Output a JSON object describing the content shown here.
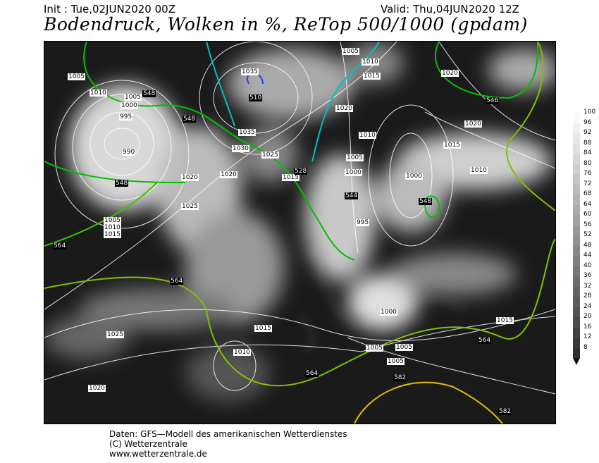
{
  "header": {
    "init": "Init : Tue,02JUN2020 00Z",
    "valid": "Valid: Thu,04JUN2020 12Z",
    "title": "Bodendruck, Wolken in %, ReTop 500/1000 (gpdam)"
  },
  "map": {
    "isobar_labels": [
      "1005",
      "1010",
      "1005",
      "1000",
      "995",
      "990",
      "1020",
      "1020",
      "1025",
      "1005",
      "1010",
      "1015",
      "1035",
      "1035",
      "1030",
      "1025",
      "1015",
      "1005",
      "1010",
      "1015",
      "1020",
      "1010",
      "1005",
      "1000",
      "995",
      "1000",
      "1020",
      "1020",
      "1015",
      "1010",
      "1000",
      "1015",
      "1015",
      "1025",
      "1010",
      "1020",
      "1005",
      "1005",
      "1005"
    ],
    "retop_labels": [
      "548",
      "548",
      "548",
      "564",
      "564",
      "528",
      "510",
      "546",
      "548",
      "544",
      "564",
      "564",
      "582",
      "582"
    ],
    "colors": {
      "isobar": "#ffffff",
      "retop_low": "#00c000",
      "retop_mid": "#90d000",
      "retop_high": "#e0c000",
      "retop_cold": "#00c0c0",
      "retop_coldest": "#2040ff",
      "coast": "#ffffff"
    }
  },
  "colorbar": {
    "unit": "%",
    "ticks": [
      "100",
      "96",
      "92",
      "88",
      "84",
      "80",
      "76",
      "72",
      "68",
      "64",
      "60",
      "56",
      "52",
      "48",
      "44",
      "40",
      "36",
      "32",
      "28",
      "24",
      "20",
      "16",
      "12",
      "8"
    ]
  },
  "footer": {
    "line1": "Daten: GFS—Modell des amerikanischen Wetterdienstes",
    "line2": "(C) Wetterzentrale",
    "line3": "www.wetterzentrale.de"
  }
}
